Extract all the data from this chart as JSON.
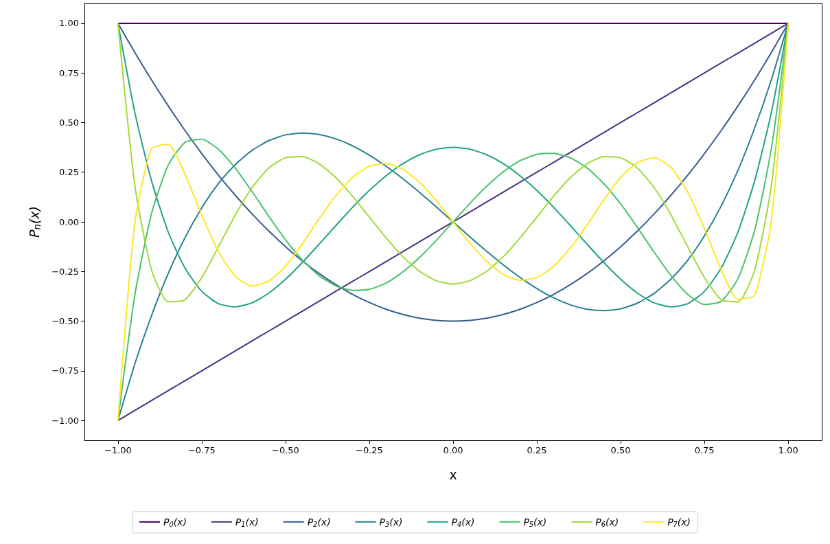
{
  "chart_data": {
    "type": "line",
    "xlabel": "x",
    "ylabel": "P$_{n}$(x)",
    "x": [
      -1,
      -0.95,
      -0.9,
      -0.85,
      -0.8,
      -0.75,
      -0.7,
      -0.65,
      -0.6,
      -0.55,
      -0.5,
      -0.45,
      -0.4,
      -0.35,
      -0.3,
      -0.25,
      -0.2,
      -0.15,
      -0.1,
      -0.05,
      0,
      0.05,
      0.1,
      0.15,
      0.2,
      0.25,
      0.3,
      0.35,
      0.4,
      0.45,
      0.5,
      0.55,
      0.6,
      0.65,
      0.7,
      0.75,
      0.8,
      0.85,
      0.9,
      0.95,
      1
    ],
    "series": [
      {
        "name": "P$_{0}$(x)",
        "color": "#440154",
        "values": [
          1,
          1,
          1,
          1,
          1,
          1,
          1,
          1,
          1,
          1,
          1,
          1,
          1,
          1,
          1,
          1,
          1,
          1,
          1,
          1,
          1,
          1,
          1,
          1,
          1,
          1,
          1,
          1,
          1,
          1,
          1,
          1,
          1,
          1,
          1,
          1,
          1,
          1,
          1,
          1,
          1
        ]
      },
      {
        "name": "P$_{1}$(x)",
        "color": "#46327e",
        "values": [
          -1,
          -0.95,
          -0.9,
          -0.85,
          -0.8,
          -0.75,
          -0.7,
          -0.65,
          -0.6,
          -0.55,
          -0.5,
          -0.45,
          -0.4,
          -0.35,
          -0.3,
          -0.25,
          -0.2,
          -0.15,
          -0.1,
          -0.05,
          0,
          0.05,
          0.1,
          0.15,
          0.2,
          0.25,
          0.3,
          0.35,
          0.4,
          0.45,
          0.5,
          0.55,
          0.6,
          0.65,
          0.7,
          0.75,
          0.8,
          0.85,
          0.9,
          0.95,
          1
        ]
      },
      {
        "name": "P$_{2}$(x)",
        "color": "#365c8d",
        "values": [
          1,
          0.854,
          0.715,
          0.584,
          0.46,
          0.344,
          0.235,
          0.134,
          0.04,
          -0.046,
          -0.125,
          -0.196,
          -0.26,
          -0.316,
          -0.365,
          -0.406,
          -0.44,
          -0.466,
          -0.485,
          -0.496,
          -0.5,
          -0.496,
          -0.485,
          -0.466,
          -0.44,
          -0.406,
          -0.365,
          -0.316,
          -0.26,
          -0.196,
          -0.125,
          -0.046,
          0.04,
          0.134,
          0.235,
          0.344,
          0.46,
          0.584,
          0.715,
          0.854,
          1
        ]
      },
      {
        "name": "P$_{3}$(x)",
        "color": "#277f8e",
        "values": [
          -1,
          -0.718,
          -0.473,
          -0.26,
          -0.08,
          0.07,
          0.193,
          0.288,
          0.36,
          0.409,
          0.438,
          0.447,
          0.44,
          0.418,
          0.383,
          0.336,
          0.28,
          0.217,
          0.148,
          0.075,
          0,
          -0.075,
          -0.148,
          -0.217,
          -0.28,
          -0.336,
          -0.383,
          -0.418,
          -0.44,
          -0.447,
          -0.438,
          -0.409,
          -0.36,
          -0.288,
          -0.193,
          -0.07,
          0.08,
          0.26,
          0.473,
          0.718,
          1
        ]
      },
      {
        "name": "P$_{4}$(x)",
        "color": "#1fa187",
        "values": [
          1,
          0.554,
          0.208,
          -0.051,
          -0.233,
          -0.35,
          -0.412,
          -0.428,
          -0.408,
          -0.359,
          -0.289,
          -0.205,
          -0.113,
          -0.019,
          0.073,
          0.158,
          0.232,
          0.293,
          0.338,
          0.366,
          0.375,
          0.366,
          0.338,
          0.293,
          0.232,
          0.158,
          0.073,
          -0.019,
          -0.113,
          -0.205,
          -0.289,
          -0.359,
          -0.408,
          -0.428,
          -0.412,
          -0.35,
          -0.233,
          -0.051,
          0.208,
          0.554,
          1
        ]
      },
      {
        "name": "P$_{5}$(x)",
        "color": "#4ac16d",
        "values": [
          -1,
          -0.373,
          0.041,
          0.286,
          0.4,
          0.416,
          0.365,
          0.27,
          0.153,
          0.028,
          -0.09,
          -0.192,
          -0.271,
          -0.322,
          -0.345,
          -0.34,
          -0.308,
          -0.252,
          -0.179,
          -0.093,
          0,
          0.093,
          0.179,
          0.252,
          0.308,
          0.34,
          0.345,
          0.322,
          0.271,
          0.192,
          0.09,
          -0.028,
          -0.153,
          -0.27,
          -0.365,
          -0.416,
          -0.4,
          -0.286,
          -0.041,
          0.373,
          1
        ]
      },
      {
        "name": "P$_{6}$(x)",
        "color": "#a0da39",
        "values": [
          1,
          0.188,
          -0.241,
          -0.403,
          -0.392,
          -0.281,
          -0.125,
          0.035,
          0.172,
          0.271,
          0.323,
          0.329,
          0.293,
          0.223,
          0.129,
          0.024,
          -0.08,
          -0.175,
          -0.249,
          -0.296,
          -0.313,
          -0.296,
          -0.249,
          -0.175,
          -0.08,
          0.024,
          0.129,
          0.223,
          0.293,
          0.329,
          0.323,
          0.271,
          0.172,
          0.035,
          -0.125,
          -0.281,
          -0.392,
          -0.403,
          -0.241,
          0.188,
          1
        ]
      },
      {
        "name": "P$_{7}$(x)",
        "color": "#fde725",
        "values": [
          -1,
          -0.011,
          0.368,
          0.391,
          0.24,
          0.034,
          -0.15,
          -0.274,
          -0.323,
          -0.298,
          -0.223,
          -0.111,
          0.015,
          0.132,
          0.224,
          0.28,
          0.294,
          0.265,
          0.199,
          0.107,
          0,
          -0.107,
          -0.199,
          -0.265,
          -0.294,
          -0.28,
          -0.224,
          -0.132,
          -0.015,
          0.111,
          0.223,
          0.298,
          0.323,
          0.274,
          0.15,
          -0.034,
          -0.24,
          -0.391,
          -0.368,
          0.011,
          1
        ]
      }
    ],
    "xlim": [
      -1.1,
      1.1
    ],
    "xticks": [
      {
        "value": -1,
        "label": "−1.00"
      },
      {
        "value": -0.75,
        "label": "−0.75"
      },
      {
        "value": -0.5,
        "label": "−0.50"
      },
      {
        "value": -0.25,
        "label": "−0.25"
      },
      {
        "value": 0,
        "label": "0.00"
      },
      {
        "value": 0.25,
        "label": "0.25"
      },
      {
        "value": 0.5,
        "label": "0.50"
      },
      {
        "value": 0.75,
        "label": "0.75"
      },
      {
        "value": 1,
        "label": "1.00"
      }
    ],
    "ylim": [
      -1.1,
      1.1
    ],
    "yticks": [
      {
        "value": -1,
        "label": "−1.00"
      },
      {
        "value": -0.75,
        "label": "−0.75"
      },
      {
        "value": -0.5,
        "label": "−0.50"
      },
      {
        "value": -0.25,
        "label": "−0.25"
      },
      {
        "value": 0,
        "label": "0.00"
      },
      {
        "value": 0.25,
        "label": "0.25"
      },
      {
        "value": 0.5,
        "label": "0.50"
      },
      {
        "value": 0.75,
        "label": "0.75"
      },
      {
        "value": 1,
        "label": "1.00"
      }
    ],
    "grid": false,
    "legend": "bottom",
    "marker": "none",
    "line_style": "solid"
  }
}
